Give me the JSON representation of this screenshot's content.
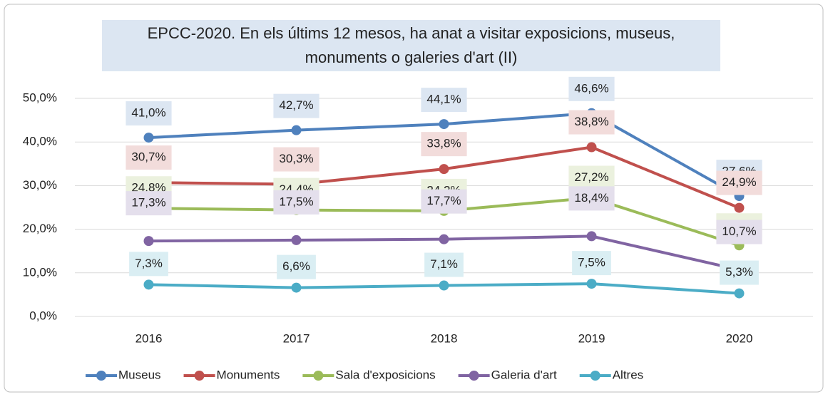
{
  "chart_data": {
    "type": "line",
    "title": "EPCC-2020. En els últims 12 mesos, ha anat a visitar exposicions, museus, monuments o galeries d'art (II)",
    "categories": [
      "2016",
      "2017",
      "2018",
      "2019",
      "2020"
    ],
    "ylim": [
      0,
      50
    ],
    "yticks": [
      {
        "value": 0,
        "label": "0,0%"
      },
      {
        "value": 10,
        "label": "10,0%"
      },
      {
        "value": 20,
        "label": "20,0%"
      },
      {
        "value": 30,
        "label": "30,0%"
      },
      {
        "value": 40,
        "label": "40,0%"
      },
      {
        "value": 50,
        "label": "50,0%"
      }
    ],
    "grid": true,
    "legend": "bottom",
    "series": [
      {
        "name": "Museus",
        "color": "#4f81bd",
        "label_color": "#dce6f2",
        "values": [
          41.0,
          42.7,
          44.1,
          46.6,
          27.6
        ],
        "value_labels": [
          "41,0%",
          "42,7%",
          "44,1%",
          "46,6%",
          "27,6%"
        ]
      },
      {
        "name": "Monuments",
        "color": "#c0504d",
        "label_color": "#f2dcdb",
        "values": [
          30.7,
          30.3,
          33.8,
          38.8,
          24.9
        ],
        "value_labels": [
          "30,7%",
          "30,3%",
          "33,8%",
          "38,8%",
          "24,9%"
        ]
      },
      {
        "name": "Sala d'exposicions",
        "color": "#9bbb59",
        "label_color": "#ebf1de",
        "values": [
          24.8,
          24.4,
          24.2,
          27.2,
          16.3
        ],
        "value_labels": [
          "24,8%",
          "24,4%",
          "24,2%",
          "27,2%",
          "16,3%"
        ]
      },
      {
        "name": "Galeria d'art",
        "color": "#8064a2",
        "label_color": "#e4dfec",
        "values": [
          17.3,
          17.5,
          17.7,
          18.4,
          10.7
        ],
        "value_labels": [
          "17,3%",
          "17,5%",
          "17,7%",
          "18,4%",
          "10,7%"
        ]
      },
      {
        "name": "Altres",
        "color": "#4bacc6",
        "label_color": "#daeef3",
        "values": [
          7.3,
          6.6,
          7.1,
          7.5,
          5.3
        ],
        "value_labels": [
          "7,3%",
          "6,6%",
          "7,1%",
          "7,5%",
          "5,3%"
        ]
      }
    ]
  }
}
